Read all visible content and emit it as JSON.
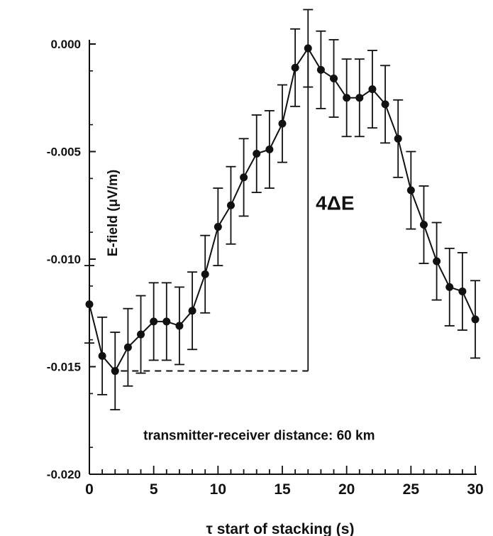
{
  "chart_data": {
    "type": "line",
    "title": "",
    "xlabel": "τ  start of stacking (s)",
    "ylabel": "E-field (μV/m)",
    "xlim": [
      0,
      30
    ],
    "ylim": [
      -0.02,
      0.0
    ],
    "xticks": [
      0,
      5,
      10,
      15,
      20,
      25,
      30
    ],
    "xtick_labels": [
      "0",
      "5",
      "10",
      "15",
      "20",
      "25",
      "30"
    ],
    "yticks": [
      0.0,
      -0.005,
      -0.01,
      -0.015,
      -0.02
    ],
    "ytick_labels": [
      "0.000",
      "-0.005",
      "-0.010",
      "-0.015",
      "-0.020"
    ],
    "grid": false,
    "series": [
      {
        "x": [
          0,
          1,
          2,
          3,
          4,
          5,
          6,
          7,
          8,
          9,
          10,
          11,
          12,
          13,
          14,
          15,
          16,
          17,
          18,
          19,
          20,
          21,
          22,
          23,
          24,
          25,
          26,
          27,
          28,
          29,
          30
        ],
        "y": [
          -0.0121,
          -0.0145,
          -0.0152,
          -0.0141,
          -0.0135,
          -0.0129,
          -0.0129,
          -0.0131,
          -0.0124,
          -0.0107,
          -0.0085,
          -0.0075,
          -0.0062,
          -0.0051,
          -0.0049,
          -0.0037,
          -0.0011,
          -0.0002,
          -0.0012,
          -0.0016,
          -0.0025,
          -0.0025,
          -0.0021,
          -0.0028,
          -0.0044,
          -0.0068,
          -0.0084,
          -0.0101,
          -0.0113,
          -0.0115,
          -0.0128
        ],
        "error": 0.0018
      }
    ],
    "reference_line": {
      "x": 17,
      "y_bottom": -0.0152,
      "y_top": -0.0002,
      "baseline_x_start": 2
    },
    "annotations": [
      {
        "text": "4ΔE",
        "x": 17.6,
        "y": -0.0077
      },
      {
        "text": "transmitter-receiver distance: 60 km",
        "x": 4.2,
        "y": -0.0184
      }
    ]
  }
}
